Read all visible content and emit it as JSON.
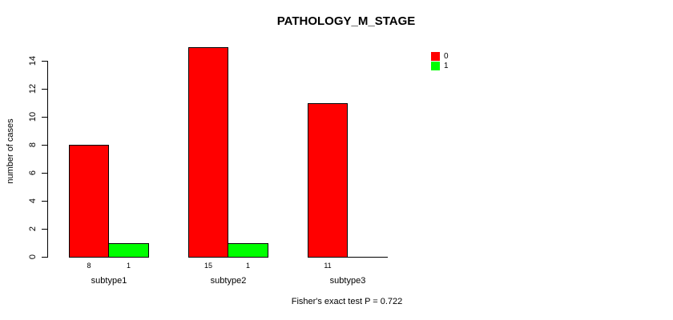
{
  "chart_data": {
    "type": "bar",
    "title": "PATHOLOGY_M_STAGE",
    "xlabel": "",
    "ylabel": "number of cases",
    "categories": [
      "subtype1",
      "subtype2",
      "subtype3"
    ],
    "series": [
      {
        "name": "0",
        "color": "#ff0000",
        "values": [
          8,
          15,
          11
        ]
      },
      {
        "name": "1",
        "color": "#00ff00",
        "values": [
          1,
          1,
          0
        ]
      }
    ],
    "bar_value_labels": [
      [
        "8",
        "1"
      ],
      [
        "15",
        "1"
      ],
      [
        "11",
        ""
      ]
    ],
    "yticks": [
      0,
      2,
      4,
      6,
      8,
      10,
      12,
      14
    ],
    "ylim": [
      0,
      15
    ],
    "grid": false,
    "legend_position": "top-right",
    "legend_entries": [
      {
        "label": "0",
        "color": "#ff0000"
      },
      {
        "label": "1",
        "color": "#00ff00"
      }
    ],
    "annotation": "Fisher's exact test P = 0.722"
  },
  "colors": {
    "background": "#ffffff",
    "axis": "#000000",
    "text": "#000000",
    "bar_border": "#000000",
    "series_0": "#ff0000",
    "series_1": "#00ff00"
  }
}
